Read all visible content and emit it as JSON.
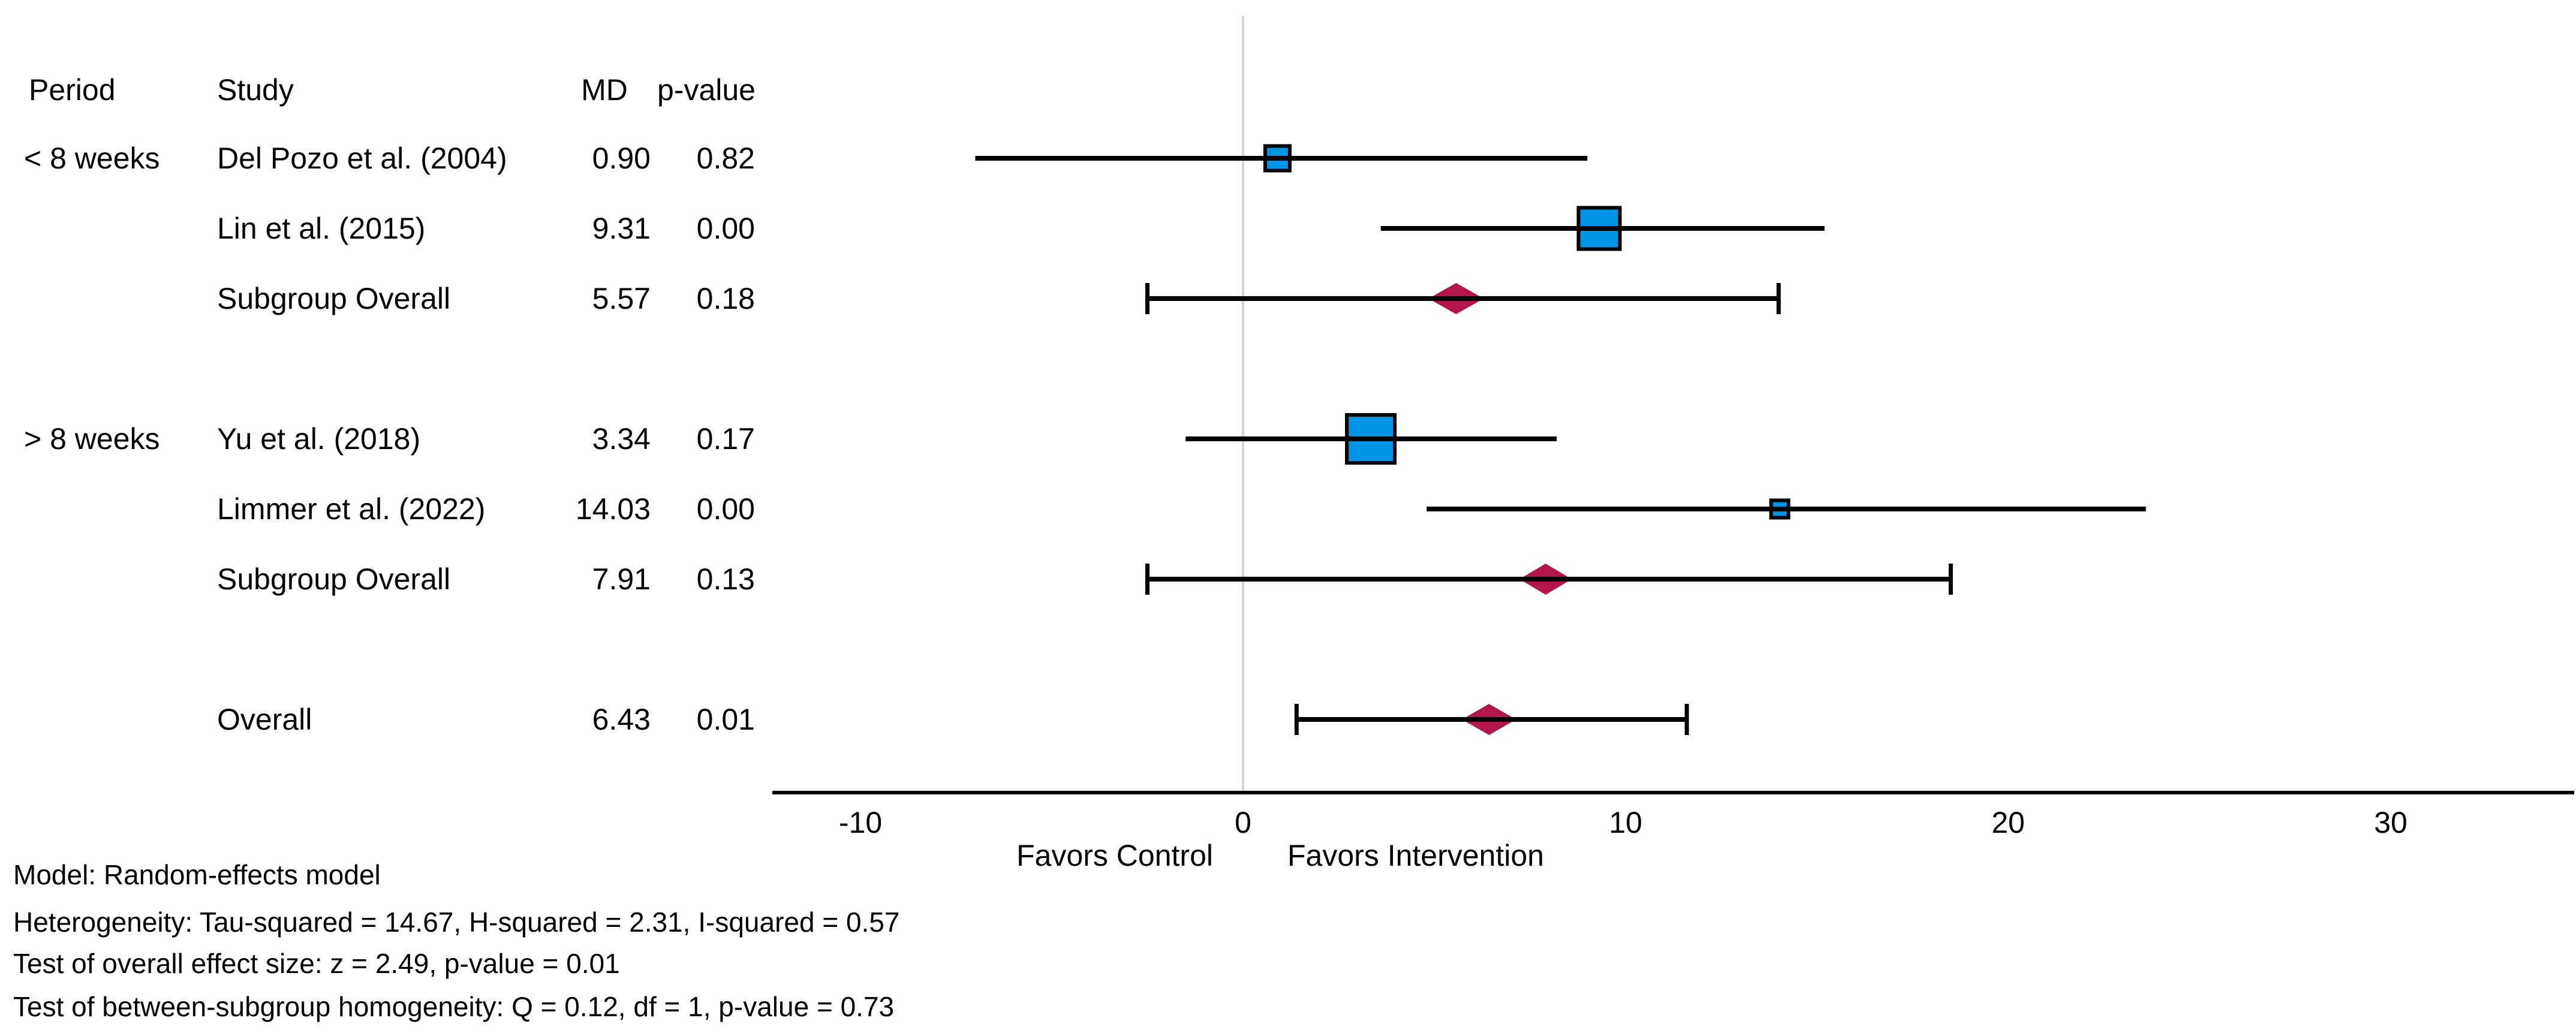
{
  "chart_data": {
    "type": "forest",
    "title": "",
    "columns": {
      "period": "Period",
      "study": "Study",
      "md": "MD",
      "p": "p-value"
    },
    "rows": [
      {
        "period": "< 8 weeks",
        "study": "Del Pozo et al. (2004)",
        "md": "0.90",
        "p": "0.82",
        "estimate": 0.9,
        "ci_low": -7.0,
        "ci_high": 9.0,
        "marker": "square",
        "marker_px": 41,
        "gap_before": false
      },
      {
        "period": "",
        "study": "Lin et al. (2015)",
        "md": "9.31",
        "p": "0.00",
        "estimate": 9.31,
        "ci_low": 3.6,
        "ci_high": 15.2,
        "marker": "square",
        "marker_px": 69,
        "gap_before": false
      },
      {
        "period": "",
        "study": "Subgroup Overall",
        "md": "5.57",
        "p": "0.18",
        "estimate": 5.57,
        "ci_low": -2.5,
        "ci_high": 14.0,
        "marker": "diamond",
        "marker_px": 92,
        "gap_before": false
      },
      {
        "period": "> 8 weeks",
        "study": "Yu et al. (2018)",
        "md": "3.34",
        "p": "0.17",
        "estimate": 3.34,
        "ci_low": -1.5,
        "ci_high": 8.2,
        "marker": "square",
        "marker_px": 80,
        "gap_before": true
      },
      {
        "period": "",
        "study": "Limmer et al. (2022)",
        "md": "14.03",
        "p": "0.00",
        "estimate": 14.03,
        "ci_low": 4.8,
        "ci_high": 23.6,
        "marker": "square",
        "marker_px": 29,
        "gap_before": false
      },
      {
        "period": "",
        "study": "Subgroup Overall",
        "md": "7.91",
        "p": "0.13",
        "estimate": 7.91,
        "ci_low": -2.5,
        "ci_high": 18.5,
        "marker": "diamond",
        "marker_px": 87,
        "gap_before": false
      },
      {
        "period": "",
        "study": "Overall",
        "md": "6.43",
        "p": "0.01",
        "estimate": 6.43,
        "ci_low": 1.4,
        "ci_high": 11.6,
        "marker": "diamond",
        "marker_px": 90,
        "gap_before": true
      }
    ],
    "axis": {
      "ticks": [
        -10,
        0,
        10,
        20,
        30
      ],
      "xmin": -12.3,
      "xmax": 34.8,
      "zero_line_at": 0,
      "favors_left": "Favors Control",
      "favors_right": "Favors Intervention"
    },
    "footnotes": [
      "Model: Random-effects model",
      "Heterogeneity: Tau-squared = 14.67, H-squared = 2.31, I-squared = 0.57",
      "Test of overall effect size: z = 2.49, p-value = 0.01",
      "Test of between-subgroup homogeneity: Q = 0.12, df = 1, p-value = 0.73"
    ],
    "colors": {
      "study_marker": "#0094e4",
      "summary_marker": "#b2164d",
      "zero_line": "#d4d4d4",
      "ci_line": "#000000",
      "axis_line": "#000000"
    }
  }
}
